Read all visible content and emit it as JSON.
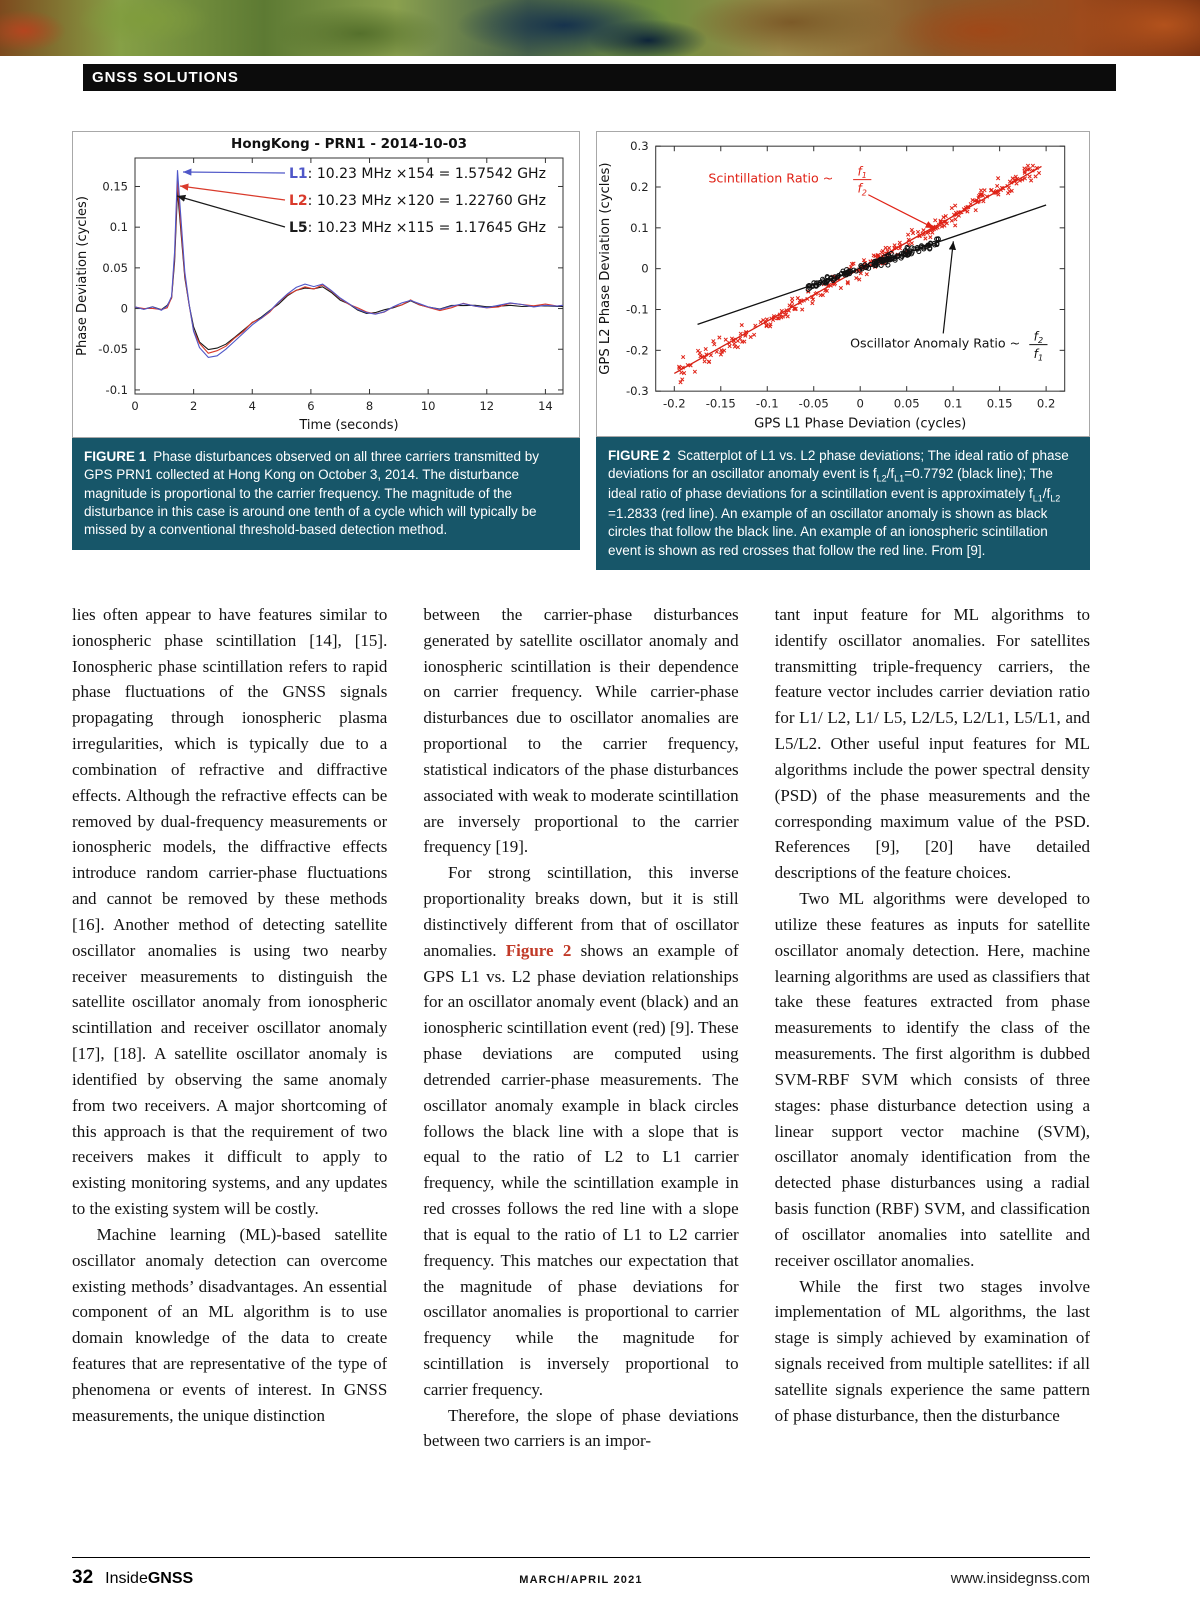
{
  "header": {
    "section": "GNSS SOLUTIONS"
  },
  "fig1": {
    "caption_tag": "FIGURE 1",
    "caption": "Phase disturbances observed on all three carriers transmitted by GPS PRN1 collected at Hong Kong on October 3, 2014. The disturbance magnitude is proportional to the carrier frequency. The magnitude of the disturbance in this case is around one tenth of a cycle which will typically be missed by a conventional threshold-based detection method."
  },
  "fig2": {
    "caption_tag": "FIGURE 2",
    "caption_segments": [
      {
        "t": "Scatterplot of L1 vs. L2 phase deviations; The ideal ratio of phase deviations for an oscillator anomaly event is f",
        "sub": false
      },
      {
        "t": "L2",
        "sub": true
      },
      {
        "t": "/f",
        "sub": false
      },
      {
        "t": "L1",
        "sub": true
      },
      {
        "t": "=0.7792 (black line); The ideal ratio of phase deviations for a scintillation event is approximately f",
        "sub": false
      },
      {
        "t": "L1",
        "sub": true
      },
      {
        "t": "/f",
        "sub": false
      },
      {
        "t": "L2",
        "sub": true
      },
      {
        "t": " =1.2833 (red line). An example of an oscillator anomaly is shown as black circles that follow the black line. An example of an ionospheric scintillation event is shown as red crosses that follow the red line. From [9].",
        "sub": false
      }
    ]
  },
  "article": {
    "col1": [
      "lies often appear to have features similar to ionospheric phase scintillation [14], [15]. Ionospheric phase scintillation refers to rapid phase fluctuations of the GNSS signals propagating through ionospheric plasma irregularities, which is typically due to a combination of refractive and diffractive effects. Although the refractive effects can be removed by dual-frequency measurements or ionospheric models, the diffractive effects introduce random carrier-phase fluctuations and cannot be removed by these methods [16]. Another method of detecting satellite oscillator anomalies is using two nearby receiver measurements to distinguish the satellite oscillator anomaly from ionospheric scintillation and receiver oscillator anomaly [17], [18]. A satellite oscillator anomaly is identified by observing the same anomaly from two receivers. A major shortcoming of this approach is that the requirement of two receivers makes it difficult to apply to existing monitoring systems, and any updates to the existing system will be costly.",
      "Machine learning (ML)-based satellite oscillator anomaly detection can overcome existing methods’ disadvantages. An essential component of an ML algorithm is to use domain knowledge of the data to create features that are representative of the type of phenomena or events of interest. In GNSS measurements, the unique distinction"
    ],
    "col2": {
      "p1": "between the carrier-phase disturbances generated by satellite oscillator anomaly and ionospheric scintillation is their dependence on carrier frequency. While carrier-phase disturbances due to oscillator anomalies are proportional to the carrier frequency, statistical indicators of the phase disturbances associated with weak to moderate scintillation are inversely proportional to the carrier frequency [19].",
      "p2_before": "For strong scintillation, this inverse proportionality breaks down, but it is still distinctively different from that of oscillator anomalies. ",
      "p2_link": "Figure 2",
      "p2_after": " shows an example of GPS L1 vs. L2 phase deviation relationships for an oscillator anomaly event (black) and an ionospheric scintillation event (red) [9]. These phase deviations are computed using detrended carrier-phase measurements. The oscillator anomaly example in black circles follows the black line with a slope that is equal to the ratio of L2 to L1 carrier frequency, while the scintillation example in red crosses follows the red line with a slope that is equal to the ratio of L1 to L2 carrier frequency. This matches our expectation that the magnitude of phase deviations for oscillator anomalies is proportional to carrier frequency while the magnitude for scintillation is inversely proportional to carrier frequency.",
      "p3": "Therefore, the slope of phase deviations between two carriers is an impor-"
    },
    "col3": [
      "tant input feature for ML algorithms to identify oscillator anomalies. For satellites transmitting triple-frequency carriers, the feature vector includes carrier deviation ratio for L1/ L2, L1/ L5, L2/L5, L2/L1, L5/L1, and L5/L2. Other useful input features for ML algorithms include the power spectral density (PSD) of the phase measurements and the corresponding maximum value of the PSD. References [9], [20] have detailed descriptions of the feature choices.",
      "Two ML algorithms were developed to utilize these features as inputs for satellite oscillator anomaly detection. Here, machine learning algorithms are used as classifiers that take these features extracted from phase measurements to identify the class of the measurements. The first algorithm is dubbed SVM-RBF SVM which consists of three stages: phase disturbance detection using a linear support vector machine (SVM), oscillator anomaly identification from the detected phase disturbances using a radial basis function (RBF) SVM, and classification of oscillator anomalies into satellite and receiver oscillator anomalies.",
      "While the first two stages involve implementation of ML algorithms, the last stage is simply achieved by examination of signals received from multiple satellites: if all satellite signals experience the same pattern of phase disturbance, then the disturbance"
    ]
  },
  "footer": {
    "page_number": "32",
    "logo_inside": "Inside",
    "logo_gnss": "GNSS",
    "issue": "MARCH/APRIL 2021",
    "website": "www.insidegnss.com"
  },
  "chart_data": [
    {
      "type": "line",
      "title": "HongKong - PRN1 - 2014-10-03",
      "xlabel": "Time (seconds)",
      "ylabel": "Phase Deviation (cycles)",
      "xlim": [
        0,
        14.6
      ],
      "ylim": [
        -0.105,
        0.185
      ],
      "xticks": [
        0,
        2,
        4,
        6,
        8,
        10,
        12,
        14
      ],
      "yticks": [
        -0.1,
        -0.05,
        0,
        0.05,
        0.1,
        0.15
      ],
      "grid": false,
      "legend": [
        {
          "label": "L1",
          "text": ": 10.23 MHz ×154 = 1.57542 GHz",
          "color": "#4f57c8"
        },
        {
          "label": "L2",
          "text": ": 10.23 MHz ×120 = 1.22760 GHz",
          "color": "#d93a2b"
        },
        {
          "label": "L5",
          "text": ": 10.23 MHz ×115 = 1.17645 GHz",
          "color": "#1a1a1a"
        }
      ],
      "series": [
        {
          "name": "L1",
          "color": "#4f57c8",
          "scale": 1.0,
          "peak_cycles": 0.17
        },
        {
          "name": "L2",
          "color": "#d93a2b",
          "scale": 0.91,
          "peak_cycles": 0.155
        },
        {
          "name": "L5",
          "color": "#1a1a1a",
          "scale": 0.85,
          "peak_cycles": 0.145
        }
      ],
      "base_points": [
        [
          0,
          0.002
        ],
        [
          0.3,
          -0.001
        ],
        [
          0.6,
          0.002
        ],
        [
          0.9,
          -0.002
        ],
        [
          1.1,
          0.003
        ],
        [
          1.25,
          0.015
        ],
        [
          1.35,
          0.07
        ],
        [
          1.45,
          0.17
        ],
        [
          1.55,
          0.12
        ],
        [
          1.7,
          0.045
        ],
        [
          1.85,
          0.005
        ],
        [
          2.0,
          -0.028
        ],
        [
          2.2,
          -0.048
        ],
        [
          2.5,
          -0.06
        ],
        [
          2.8,
          -0.058
        ],
        [
          3.1,
          -0.05
        ],
        [
          3.4,
          -0.04
        ],
        [
          3.7,
          -0.03
        ],
        [
          4.0,
          -0.02
        ],
        [
          4.3,
          -0.012
        ],
        [
          4.6,
          -0.003
        ],
        [
          4.9,
          0.008
        ],
        [
          5.2,
          0.018
        ],
        [
          5.5,
          0.026
        ],
        [
          5.8,
          0.03
        ],
        [
          6.1,
          0.027
        ],
        [
          6.4,
          0.03
        ],
        [
          6.7,
          0.022
        ],
        [
          7.0,
          0.013
        ],
        [
          7.3,
          0.006
        ],
        [
          7.6,
          -0.001
        ],
        [
          7.9,
          -0.005
        ],
        [
          8.2,
          -0.007
        ],
        [
          8.5,
          -0.004
        ],
        [
          8.8,
          0.002
        ],
        [
          9.1,
          0.007
        ],
        [
          9.4,
          0.01
        ],
        [
          9.7,
          0.006
        ],
        [
          10.0,
          0.002
        ],
        [
          10.4,
          -0.001
        ],
        [
          10.8,
          0.003
        ],
        [
          11.2,
          0.006
        ],
        [
          11.6,
          0.003
        ],
        [
          12.0,
          0.001
        ],
        [
          12.4,
          0.004
        ],
        [
          12.8,
          0.007
        ],
        [
          13.2,
          0.005
        ],
        [
          13.6,
          0.002
        ],
        [
          14.0,
          0.004
        ],
        [
          14.4,
          0.003
        ],
        [
          14.6,
          0.004
        ]
      ]
    },
    {
      "type": "scatter",
      "xlabel": "GPS L1 Phase Deviation (cycles)",
      "ylabel": "GPS L2 Phase Deviation (cycles)",
      "xlim": [
        -0.22,
        0.22
      ],
      "ylim": [
        -0.3,
        0.3
      ],
      "xticks": [
        -0.2,
        -0.15,
        -0.1,
        -0.05,
        0,
        0.05,
        0.1,
        0.15,
        0.2
      ],
      "yticks": [
        -0.3,
        -0.2,
        -0.1,
        0,
        0.1,
        0.2,
        0.3
      ],
      "grid": false,
      "lines": [
        {
          "name": "oscillator-ideal",
          "slope": 0.7792,
          "color": "#111111",
          "x_range": [
            -0.175,
            0.2
          ]
        },
        {
          "name": "scintillation-ideal",
          "slope": 1.2833,
          "color": "#d42014",
          "x_range": [
            -0.2,
            0.195
          ]
        }
      ],
      "scatter": [
        {
          "name": "scintillation-crosses",
          "slope": 1.2833,
          "color": "#e02317",
          "n": 290,
          "x_range": [
            -0.195,
            0.195
          ],
          "noise": 0.012,
          "marker": "cross"
        },
        {
          "name": "oscillator-circles",
          "slope": 0.7792,
          "color": "#111111",
          "n": 155,
          "x_range": [
            -0.058,
            0.085
          ],
          "noise": 0.0045,
          "marker": "circle"
        }
      ],
      "annotations": [
        {
          "name": "scintillation-ratio",
          "text": "Scintillation Ratio ~",
          "num": "f",
          "num_sub": "1",
          "den": "f",
          "den_sub": "2",
          "color": "#e02317"
        },
        {
          "name": "oscillator-anomaly-ratio",
          "text": "Oscillator Anomaly Ratio ~",
          "num": "f",
          "num_sub": "2",
          "den": "f",
          "den_sub": "1",
          "color": "#111111"
        }
      ]
    }
  ]
}
